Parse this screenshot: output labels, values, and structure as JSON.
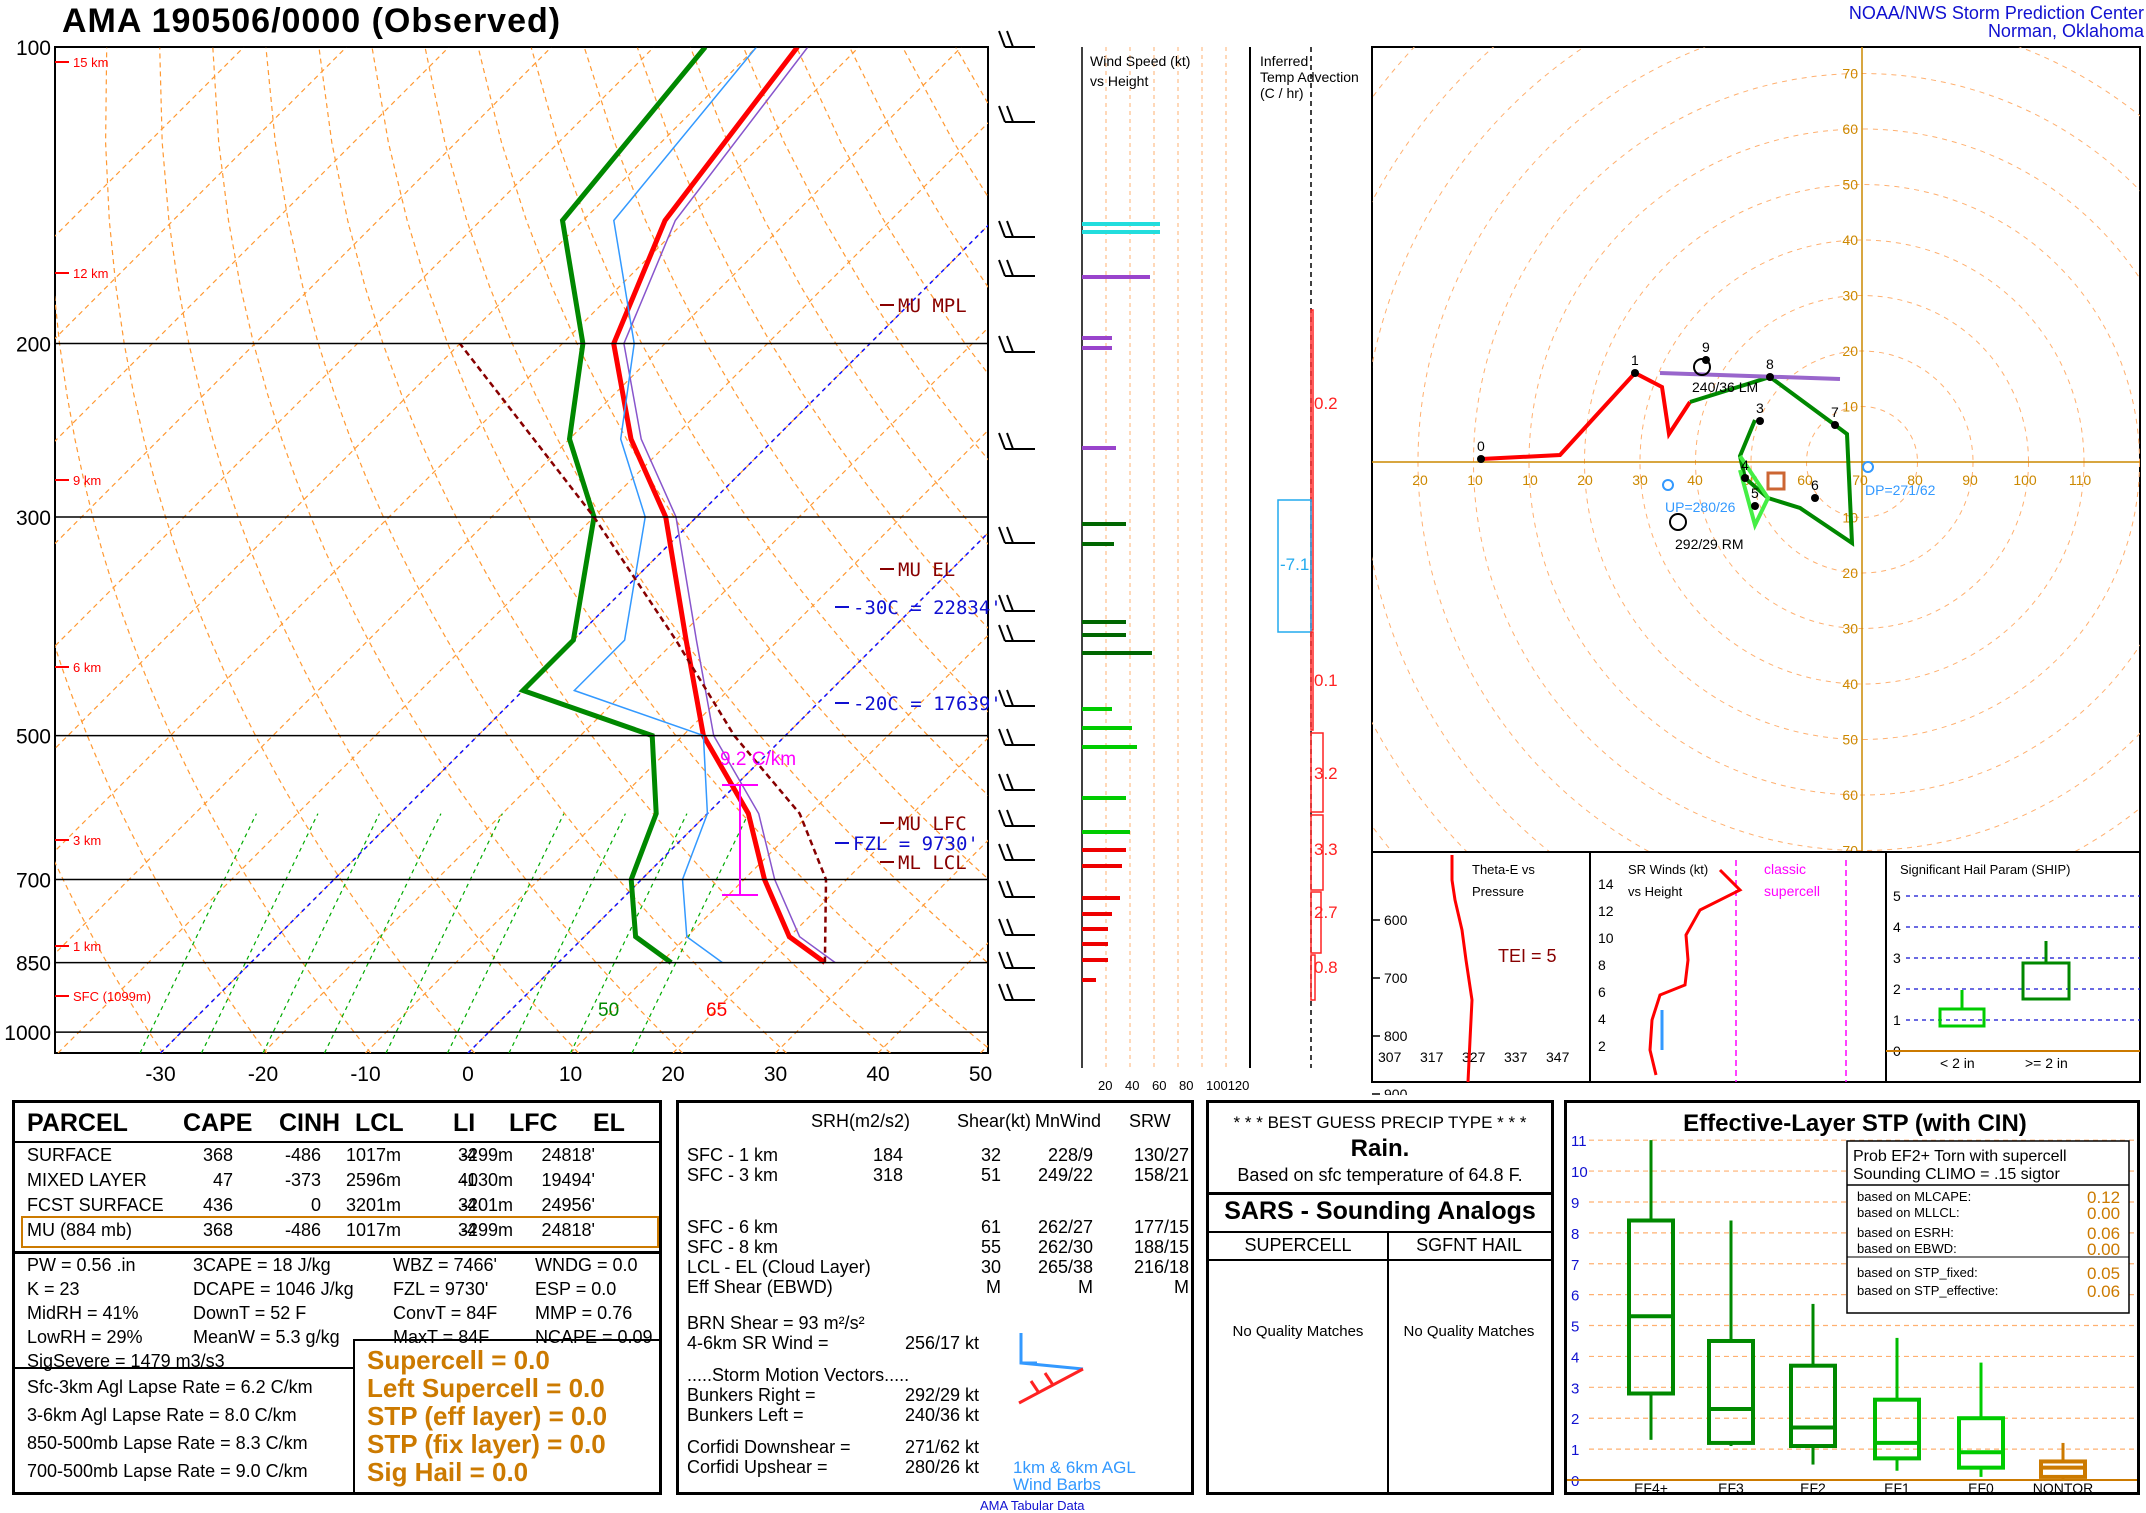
{
  "header": {
    "title": "AMA   190506/0000  (Observed)",
    "credit_line1": "NOAA/NWS Storm Prediction Center",
    "credit_line2": "Norman, Oklahoma"
  },
  "chart_data": [
    {
      "type": "line",
      "name": "skew-t",
      "pressure_ticks": [
        "100",
        "200",
        "300",
        "500",
        "700",
        "850",
        "1000"
      ],
      "temp_ticks": [
        "-30",
        "-20",
        "-10",
        "0",
        "10",
        "20",
        "30",
        "40",
        "50"
      ],
      "height_labels": [
        "15 km",
        "12 km",
        "9 km",
        "6 km",
        "3 km",
        "1 km",
        "SFC (1099m)"
      ],
      "level_labels": [
        "MU MPL",
        "MU EL",
        "-30C = 22834'",
        "-20C = 17639'",
        "MU LFC",
        "FZL = 9730'",
        "ML LCL"
      ],
      "lapse_label": "9.2 C/km",
      "sfc_labels": [
        "50",
        "65"
      ],
      "temperature_profile": [
        [
          850,
          26
        ],
        [
          800,
          20
        ],
        [
          700,
          12
        ],
        [
          600,
          4
        ],
        [
          500,
          -8
        ],
        [
          400,
          -19
        ],
        [
          300,
          -33
        ],
        [
          250,
          -44
        ],
        [
          200,
          -55
        ],
        [
          150,
          -62
        ],
        [
          100,
          -66
        ]
      ],
      "dewpoint_profile": [
        [
          850,
          11
        ],
        [
          800,
          5
        ],
        [
          700,
          -1
        ],
        [
          600,
          -5
        ],
        [
          500,
          -13
        ],
        [
          450,
          -30
        ],
        [
          400,
          -30
        ],
        [
          300,
          -40
        ],
        [
          250,
          -50
        ],
        [
          200,
          -58
        ],
        [
          150,
          -72
        ],
        [
          100,
          -75
        ]
      ]
    },
    {
      "type": "bar",
      "name": "wind speed vs height",
      "title": "Wind Speed (kt) vs Height",
      "x_ticks": [
        "20",
        "40",
        "60",
        "80",
        "100120"
      ]
    },
    {
      "type": "line",
      "name": "inferred temp advection",
      "title": "Inferred Temp Advection (C / hr)",
      "values": [
        "0.2",
        "-7.1",
        "0.1",
        "3.2",
        "3.3",
        "2.7",
        "0.8"
      ]
    },
    {
      "type": "line",
      "name": "hodograph",
      "ring_labels": [
        "10",
        "20",
        "30",
        "40",
        "50",
        "60",
        "70"
      ],
      "axis_labels": [
        "20",
        "10",
        "10",
        "20",
        "30",
        "40",
        "50",
        "60",
        "70",
        "80",
        "90",
        "100",
        "110"
      ],
      "point_labels": [
        "0",
        "1",
        "3",
        "4",
        "5",
        "6",
        "7",
        "8",
        "9"
      ],
      "annotations": [
        "240/36 LM",
        "292/29 RM",
        "UP=280/26",
        "DP=271/62"
      ]
    },
    {
      "type": "line",
      "name": "theta-e vs pressure",
      "title": "Theta-E vs Pressure",
      "y_ticks": [
        "600",
        "700",
        "800",
        "900"
      ],
      "x_ticks": [
        "307",
        "317",
        "327",
        "337",
        "347"
      ],
      "annotation": "TEI = 5"
    },
    {
      "type": "line",
      "name": "sr winds vs height",
      "title": "SR Winds (kt) vs Height",
      "y_ticks": [
        "14",
        "12",
        "10",
        "8",
        "6",
        "4",
        "2"
      ],
      "annotations": [
        "classic",
        "supercell"
      ]
    },
    {
      "type": "bar",
      "name": "significant hail parameter",
      "title": "Significant Hail Param (SHIP)",
      "y_ticks": [
        "5",
        "4",
        "3",
        "2",
        "1",
        "0"
      ],
      "categories": [
        "< 2 in",
        ">= 2 in"
      ]
    },
    {
      "type": "bar",
      "name": "effective-layer stp",
      "title": "Effective-Layer STP (with CIN)",
      "y_ticks": [
        "11",
        "10",
        "9",
        "8",
        "7",
        "6",
        "5",
        "4",
        "3",
        "2",
        "1",
        "0"
      ],
      "categories": [
        "EF4+",
        "EF3",
        "EF2",
        "EF1",
        "EF0",
        "NONTOR"
      ],
      "boxes": [
        {
          "low": 1.3,
          "q1": 2.8,
          "median": 5.3,
          "q3": 8.4,
          "high": 11.0
        },
        {
          "low": 1.1,
          "q1": 1.2,
          "median": 2.3,
          "q3": 4.5,
          "high": 8.4
        },
        {
          "low": 0.5,
          "q1": 1.1,
          "median": 1.7,
          "q3": 3.7,
          "high": 5.7
        },
        {
          "low": 0.3,
          "q1": 0.7,
          "median": 1.2,
          "q3": 2.6,
          "high": 4.6
        },
        {
          "low": 0.1,
          "q1": 0.4,
          "median": 0.9,
          "q3": 2.0,
          "high": 3.8
        },
        {
          "low": 0.0,
          "q1": 0.1,
          "median": 0.4,
          "q3": 0.6,
          "high": 1.2
        }
      ]
    }
  ],
  "parcel_table": {
    "headers": [
      "PARCEL",
      "CAPE",
      "CINH",
      "LCL",
      "LI",
      "LFC",
      "EL"
    ],
    "rows": [
      [
        "SURFACE",
        "368",
        "-486",
        "1017m",
        "-4",
        "3299m",
        "24818'"
      ],
      [
        "MIXED LAYER",
        "47",
        "-373",
        "2596m",
        "-1",
        "4030m",
        "19494'"
      ],
      [
        "FCST SURFACE",
        "436",
        "0",
        "3201m",
        "-4",
        "3201m",
        "24956'"
      ],
      [
        "MU   (884 mb)",
        "368",
        "-486",
        "1017m",
        "-4",
        "3299m",
        "24818'"
      ]
    ]
  },
  "indices": {
    "col1": [
      "PW = 0.56 .in",
      "K = 23",
      "MidRH = 41%",
      "LowRH = 29%",
      "SigSevere = 1479 m3/s3"
    ],
    "col2": [
      "3CAPE = 18 J/kg",
      "DCAPE = 1046 J/kg",
      "DownT = 52 F",
      "MeanW = 5.3 g/kg"
    ],
    "col3": [
      "WBZ = 7466'",
      "FZL = 9730'",
      "ConvT = 84F",
      "MaxT = 84F"
    ],
    "col4": [
      "WNDG = 0.0",
      "ESP = 0.0",
      "MMP = 0.76",
      "NCAPE = 0.09"
    ]
  },
  "lapse_rates": [
    "Sfc-3km Agl Lapse Rate =  6.2 C/km",
    "3-6km Agl Lapse Rate =   8.0 C/km",
    "850-500mb Lapse Rate =  8.3 C/km",
    "700-500mb Lapse Rate =  9.0 C/km"
  ],
  "composites": [
    "Supercell = 0.0",
    "Left Supercell = 0.0",
    "STP (eff layer) = 0.0",
    "STP (fix layer) = 0.0",
    "Sig Hail = 0.0"
  ],
  "kinematics": {
    "headers": [
      "SRH(m2/s2)",
      "Shear(kt)",
      "MnWind",
      "SRW"
    ],
    "rows": [
      [
        "SFC - 1 km",
        "184",
        "32",
        "228/9",
        "130/27"
      ],
      [
        "SFC - 3 km",
        "318",
        "51",
        "249/22",
        "158/21"
      ],
      [
        "SFC - 6 km",
        "",
        "61",
        "262/27",
        "177/15"
      ],
      [
        "SFC - 8 km",
        "",
        "55",
        "262/30",
        "188/15"
      ],
      [
        "LCL - EL (Cloud Layer)",
        "",
        "30",
        "265/38",
        "216/18"
      ],
      [
        "Eff Shear (EBWD)",
        "",
        "M",
        "M",
        "M"
      ]
    ],
    "brn_shear": "BRN Shear =  93 m²/s²",
    "sr_wind": "4-6km SR Wind =",
    "sr_wind_val": "256/17 kt",
    "storm_motion_title": ".....Storm Motion Vectors.....",
    "bunkers_right": "Bunkers Right =",
    "bunkers_right_val": "292/29 kt",
    "bunkers_left": "Bunkers Left =",
    "bunkers_left_val": "240/36 kt",
    "corfidi_down": "Corfidi Downshear =",
    "corfidi_down_val": "271/62 kt",
    "corfidi_up": "Corfidi Upshear =",
    "corfidi_up_val": "280/26 kt",
    "wind_barbs_label": "1km & 6km AGL Wind Barbs"
  },
  "precip": {
    "title": "* * * BEST GUESS PRECIP TYPE * * *",
    "type": "Rain.",
    "basis": "Based on sfc temperature of 64.8 F."
  },
  "sars": {
    "title": "SARS - Sounding Analogs",
    "col1": "SUPERCELL",
    "col2": "SGFNT HAIL",
    "col1_val": "No Quality Matches",
    "col2_val": "No Quality Matches"
  },
  "stp_prob": {
    "title": "Prob EF2+ Torn with supercell",
    "climo": "Sounding CLIMO = .15 sigtor",
    "items": [
      [
        "based on MLCAPE:",
        "0.12"
      ],
      [
        "based on MLLCL:",
        "0.00"
      ],
      [
        "based on ESRH:",
        "0.06"
      ],
      [
        "based on EBWD:",
        "0.00"
      ],
      [
        "based on STP_fixed:",
        "0.05"
      ],
      [
        "based on STP_effective:",
        "0.06"
      ]
    ]
  },
  "footer": "AMA Tabular Data",
  "colors": {
    "temp": "#ff0000",
    "dewpoint": "#008800",
    "parcel": "#880000",
    "virtual": "#3399ff",
    "isotherm": "#ff9933",
    "dry_adiabat": "#ff9933",
    "mixing": "#00aa00",
    "label_blue": "#1010d0",
    "orange": "#cc7a00"
  }
}
